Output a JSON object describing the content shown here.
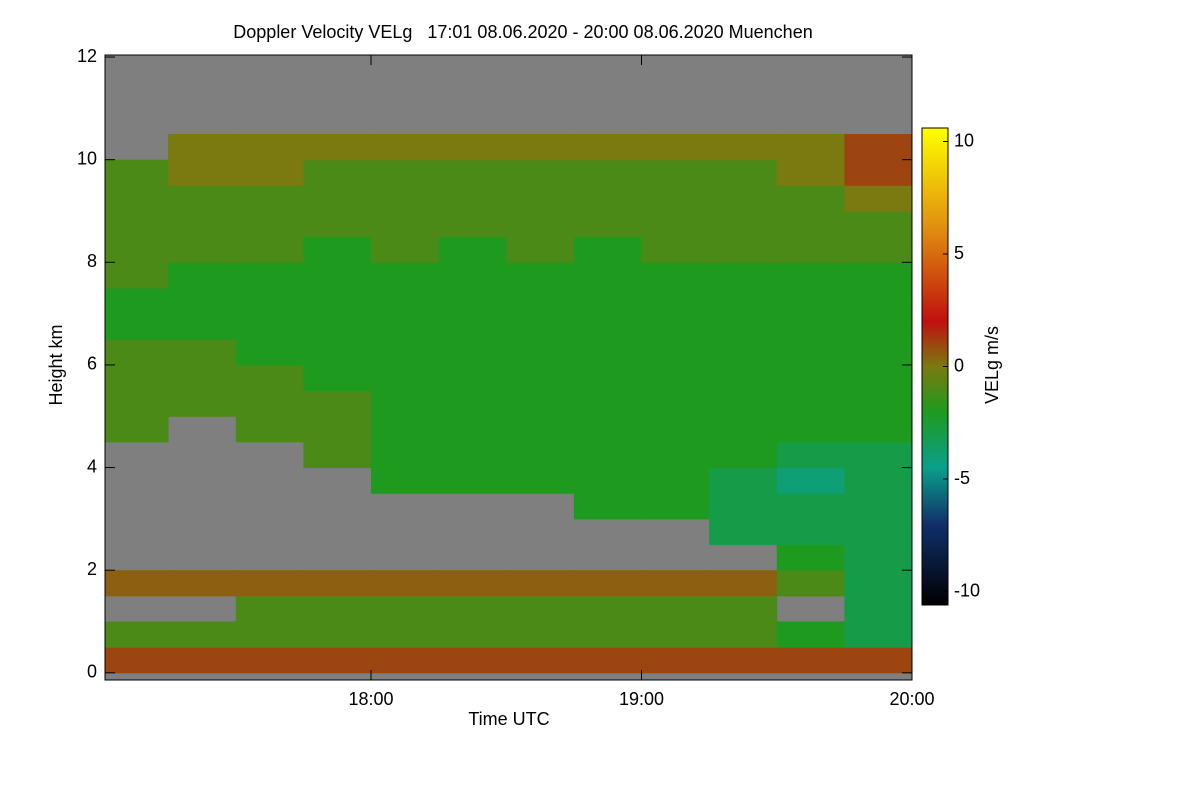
{
  "chart_data": {
    "type": "heatmap",
    "title": "Doppler Velocity VELg   17:01 08.06.2020 - 20:00 08.06.2020 Muenchen",
    "x_label": "Time UTC",
    "y_label": "Height km",
    "colorbar_label": "VELg m/s",
    "xlim": [
      17.0167,
      20.0
    ],
    "xticks": [
      {
        "value": 18,
        "label": "18:00"
      },
      {
        "value": 19,
        "label": "19:00"
      },
      {
        "value": 20,
        "label": "20:00"
      }
    ],
    "ylim": [
      -0.14,
      12.04
    ],
    "yticks": [
      0,
      2,
      4,
      6,
      8,
      10,
      12
    ],
    "zlim": [
      -10.6,
      10.6
    ],
    "zticks": [
      10,
      5,
      0,
      -5,
      -10
    ],
    "no_data_color": "#7f7f7f",
    "colormap": [
      {
        "value": -10.6,
        "color": "#000000"
      },
      {
        "value": -7,
        "color": "#10306a"
      },
      {
        "value": -4.5,
        "color": "#0aa08a"
      },
      {
        "value": -2,
        "color": "#1e9a1e"
      },
      {
        "value": 0,
        "color": "#7a7a10"
      },
      {
        "value": 2,
        "color": "#c01010"
      },
      {
        "value": 6,
        "color": "#e08a10"
      },
      {
        "value": 10.6,
        "color": "#ffff00"
      }
    ],
    "xbins": [
      17.0167,
      17.25,
      17.5,
      17.75,
      18.0,
      18.25,
      18.5,
      18.75,
      19.0,
      19.25,
      19.5,
      19.75,
      20.0
    ],
    "ybins": [
      0,
      0.5,
      1,
      1.5,
      2,
      2.5,
      3,
      3.5,
      4,
      4.5,
      5,
      5.5,
      6,
      6.5,
      7,
      7.5,
      8,
      8.5,
      9,
      9.5,
      10,
      10.5,
      11,
      11.5,
      12
    ],
    "values": [
      [
        1,
        1,
        1,
        1,
        1,
        1,
        1,
        1,
        1,
        1,
        1,
        1
      ],
      [
        -1,
        -1,
        -1,
        -1,
        -1,
        -1,
        -1,
        -1,
        -1,
        -1,
        -2,
        -3
      ],
      [
        null,
        null,
        -1,
        -1,
        -1,
        -1,
        -1,
        -1,
        -1,
        -1,
        null,
        -3
      ],
      [
        0.5,
        0.5,
        0.5,
        0.5,
        0.5,
        0.5,
        0.5,
        0.5,
        0.5,
        0.5,
        -1,
        -3
      ],
      [
        null,
        null,
        null,
        null,
        null,
        null,
        null,
        null,
        null,
        null,
        -2,
        -3
      ],
      [
        null,
        null,
        null,
        null,
        null,
        null,
        null,
        null,
        null,
        -3,
        -3,
        -3
      ],
      [
        null,
        null,
        null,
        null,
        null,
        null,
        null,
        -2,
        -2,
        -3,
        -3,
        -3
      ],
      [
        null,
        null,
        null,
        null,
        -2,
        -2,
        -2,
        -2,
        -2,
        -3,
        -4,
        -3
      ],
      [
        null,
        null,
        null,
        -1,
        -2,
        -2,
        -2,
        -2,
        -2,
        -2,
        -3,
        -3
      ],
      [
        -1,
        null,
        -1,
        -1,
        -2,
        -2,
        -2,
        -2,
        -2,
        -2,
        -2,
        -2
      ],
      [
        -1,
        -1,
        -1,
        -1,
        -2,
        -2,
        -2,
        -2,
        -2,
        -2,
        -2,
        -2
      ],
      [
        -1,
        -1,
        -1,
        -2,
        -2,
        -2,
        -2,
        -2,
        -2,
        -2,
        -2,
        -2
      ],
      [
        -1,
        -1,
        -2,
        -2,
        -2,
        -2,
        -2,
        -2,
        -2,
        -2,
        -2,
        -2
      ],
      [
        -2,
        -2,
        -2,
        -2,
        -2,
        -2,
        -2,
        -2,
        -2,
        -2,
        -2,
        -2
      ],
      [
        -2,
        -2,
        -2,
        -2,
        -2,
        -2,
        -2,
        -2,
        -2,
        -2,
        -2,
        -2
      ],
      [
        -1,
        -2,
        -2,
        -2,
        -2,
        -2,
        -2,
        -2,
        -2,
        -2,
        -2,
        -2
      ],
      [
        -1,
        -1,
        -1,
        -2,
        -1,
        -2,
        -1,
        -2,
        -1,
        -1,
        -1,
        -1
      ],
      [
        -1,
        -1,
        -1,
        -1,
        -1,
        -1,
        -1,
        -1,
        -1,
        -1,
        -1,
        -1
      ],
      [
        -1,
        -1,
        -1,
        -1,
        -1,
        -1,
        -1,
        -1,
        -1,
        -1,
        -1,
        0
      ],
      [
        -1,
        0,
        0,
        -1,
        -1,
        -1,
        -1,
        -1,
        -1,
        -1,
        0,
        1
      ],
      [
        null,
        0,
        0,
        0,
        0,
        0,
        0,
        0,
        0,
        0,
        0,
        1
      ],
      [
        null,
        null,
        null,
        null,
        null,
        null,
        null,
        null,
        null,
        null,
        null,
        null
      ],
      [
        null,
        null,
        null,
        null,
        null,
        null,
        null,
        null,
        null,
        null,
        null,
        null
      ],
      [
        null,
        null,
        null,
        null,
        null,
        null,
        null,
        null,
        null,
        null,
        null,
        null
      ],
      [
        null,
        null,
        null,
        null,
        null,
        null,
        null,
        null,
        null,
        null,
        null,
        null
      ]
    ]
  }
}
